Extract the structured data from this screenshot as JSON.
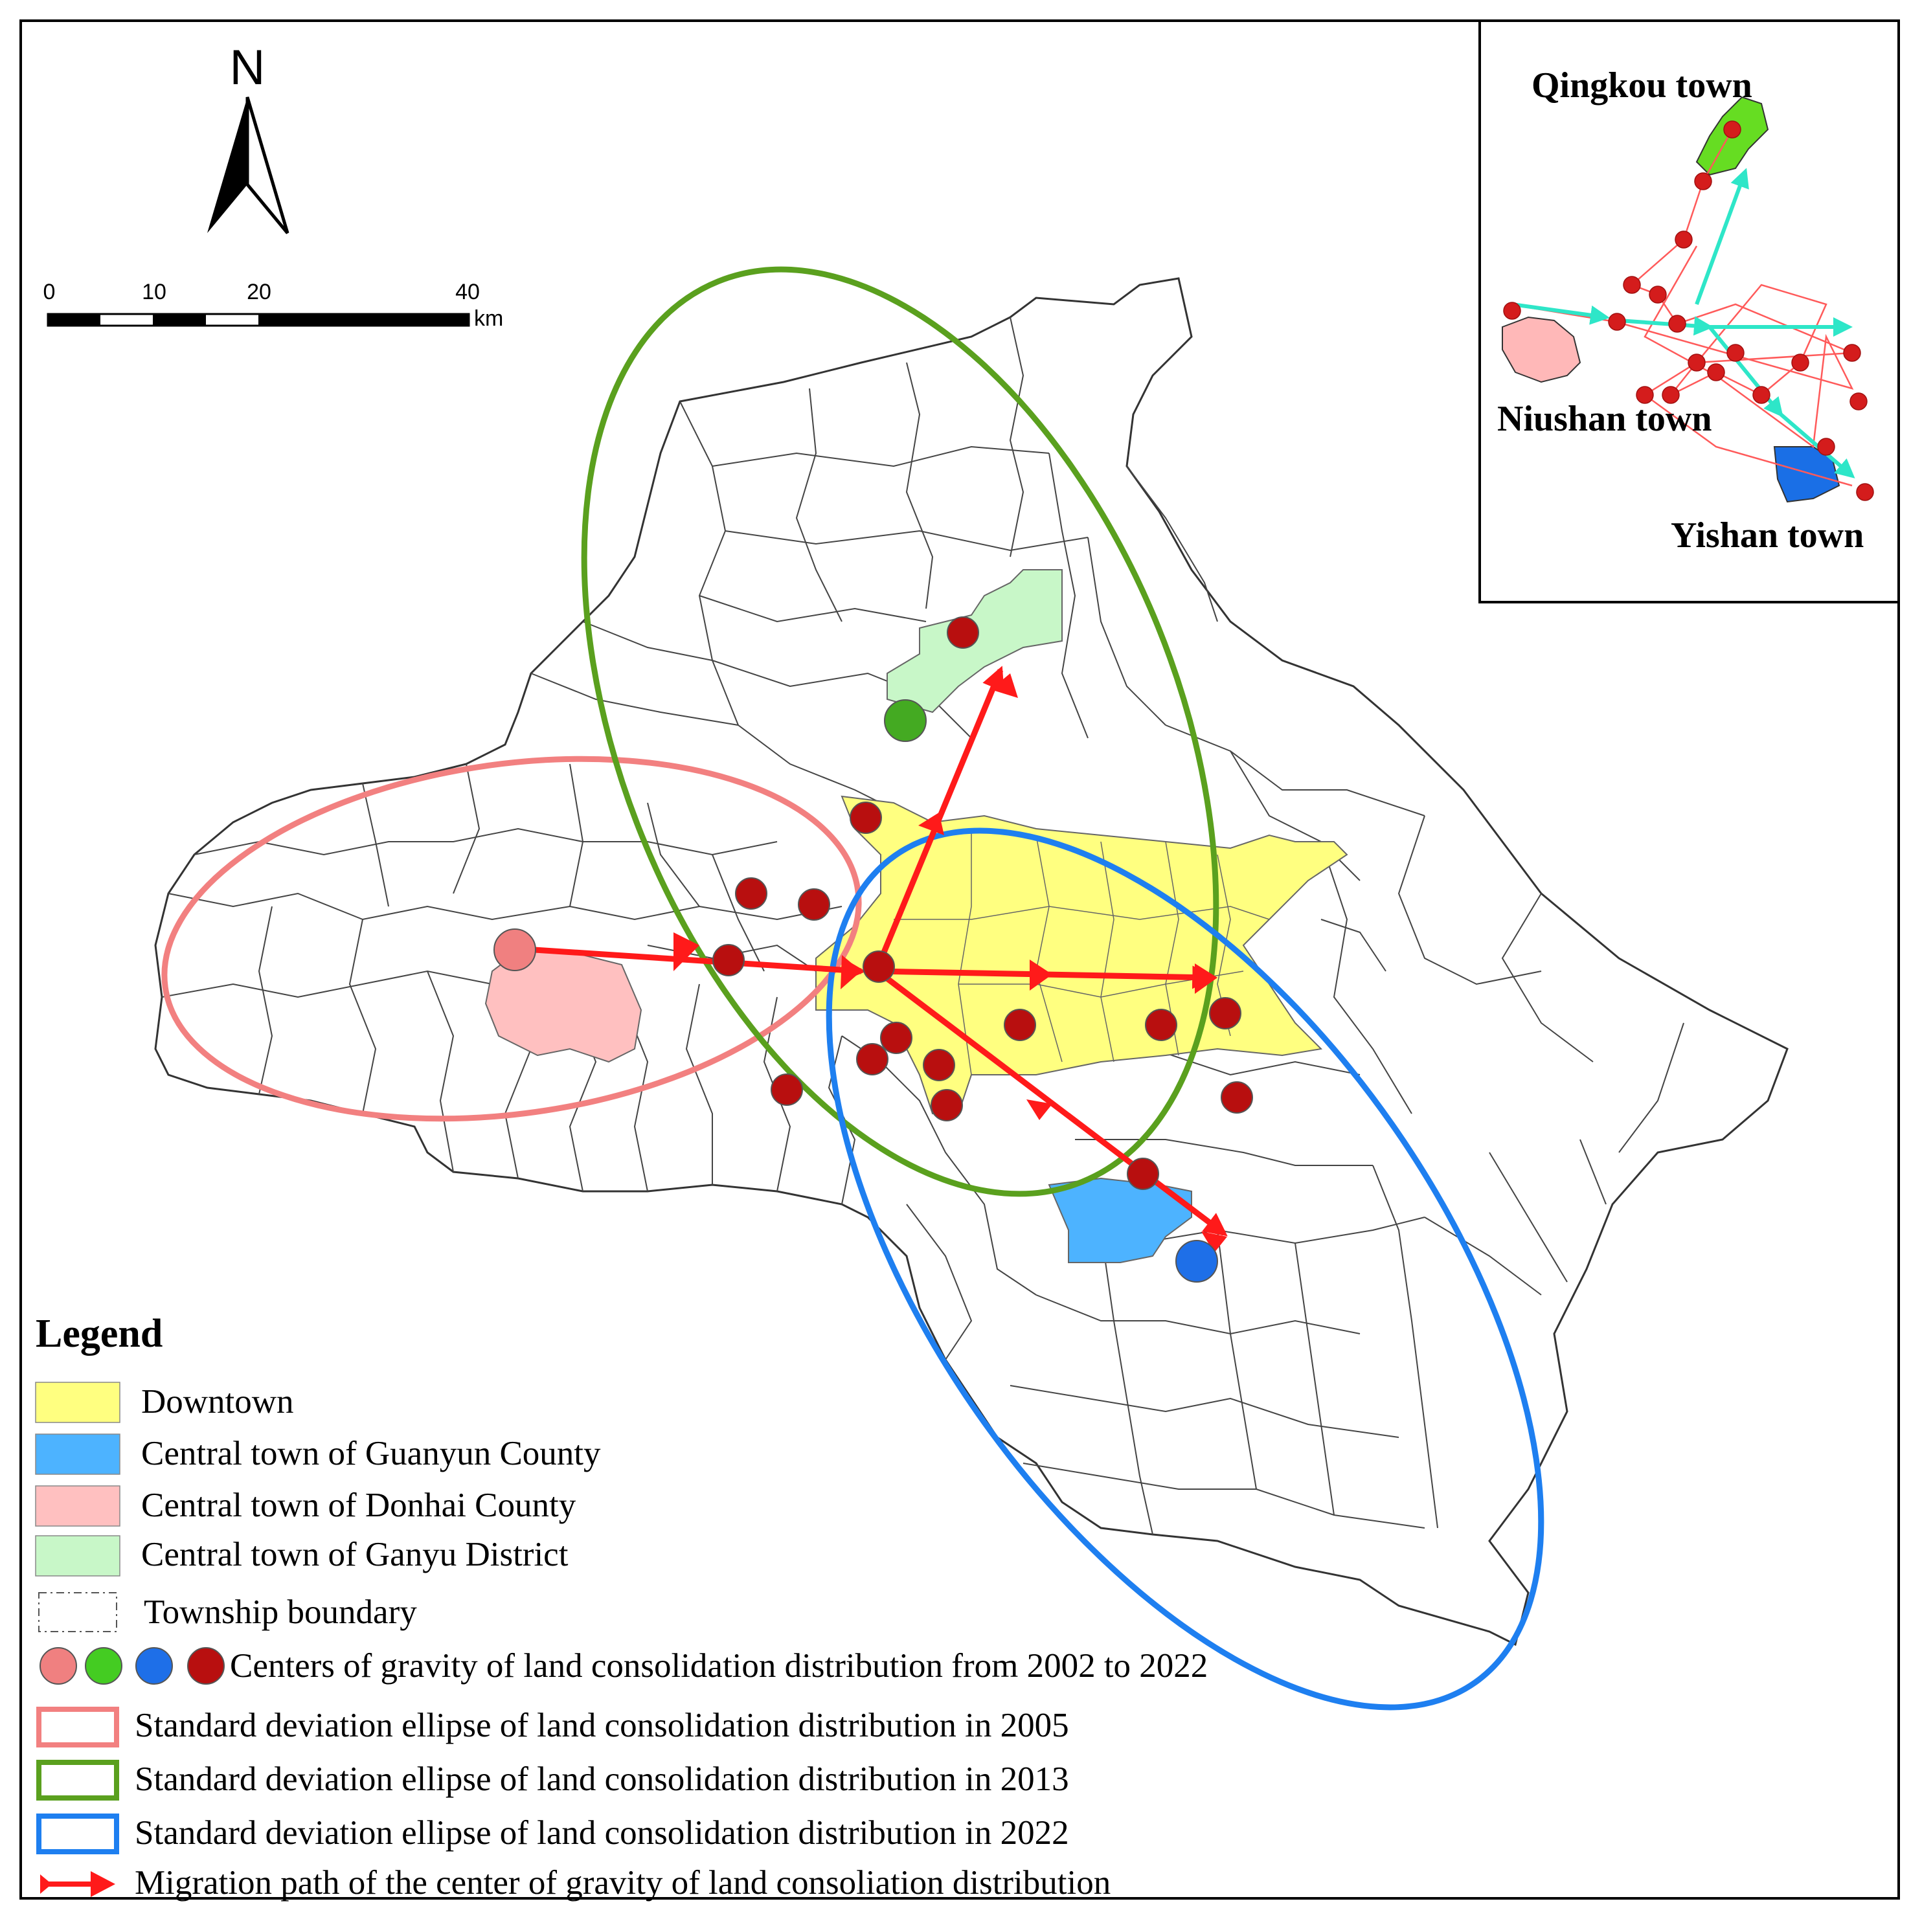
{
  "north": {
    "label": "N"
  },
  "scale_bar": {
    "ticks": [
      "0",
      "10",
      "20",
      "40"
    ],
    "unit": "km"
  },
  "inset": {
    "towns": [
      {
        "name": "Qingkou town",
        "color": "#66dd22"
      },
      {
        "name": "Niushan town",
        "color": "#ffb8b8"
      },
      {
        "name": "Yishan town",
        "color": "#1a6fe6"
      }
    ],
    "path_colors": {
      "center_path": "#ff5a5a",
      "ellipse_path": "#2ee6c8",
      "centers": "#d41c1c"
    }
  },
  "legend": {
    "title": "Legend",
    "items": [
      {
        "key": "downtown",
        "label": "Downtown",
        "color": "#ffff80"
      },
      {
        "key": "guanyun",
        "label": "Central town of Guanyun County",
        "color": "#4db3ff"
      },
      {
        "key": "donhai",
        "label": "Central town of Donhai County",
        "color": "#ffc0c0"
      },
      {
        "key": "ganyu",
        "label": "Central town of Ganyu District",
        "color": "#c8f7c8"
      },
      {
        "key": "township",
        "label": "Township boundary",
        "color": "#555555"
      },
      {
        "key": "centers",
        "label": "Centers of gravity of land consolidation distribution from 2002 to 2022",
        "colors": [
          "#f08080",
          "#44cc22",
          "#1e6fe8",
          "#b80f0f"
        ]
      },
      {
        "key": "ellipse_2005",
        "label": "Standard deviation ellipse of land consolidation distribution in 2005",
        "color": "#f28080"
      },
      {
        "key": "ellipse_2013",
        "label": "Standard deviation ellipse of land consolidation distribution in 2013",
        "color": "#5aa01e"
      },
      {
        "key": "ellipse_2022",
        "label": "Standard deviation ellipse of land consolidation distribution in 2022",
        "color": "#1e7ff0"
      },
      {
        "key": "migration",
        "label": "Migration path of the center of gravity of land consoliation distribution",
        "color": "#ff1a1a"
      }
    ]
  }
}
